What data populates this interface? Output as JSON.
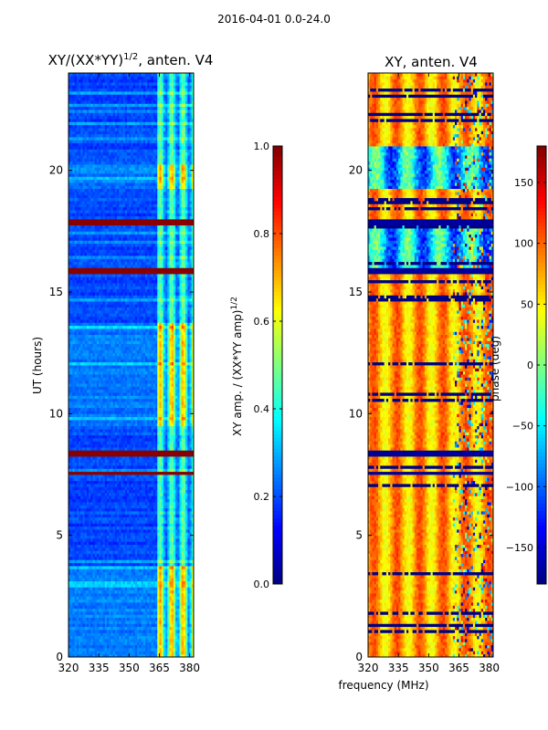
{
  "figure": {
    "suptitle": "2016-04-01 0.0-24.0",
    "xlabel": "frequency (MHz)",
    "ylabel": "UT (hours)"
  },
  "chart_data": [
    {
      "type": "heatmap",
      "title": "XY/(XX*YY)^1/2, anten. V4",
      "title_main": "XY/(XX*YY)",
      "title_exp": "1/2",
      "title_suffix": ", anten. V4",
      "xlabel": "frequency (MHz)",
      "ylabel": "UT (hours)",
      "xlim": [
        320,
        382
      ],
      "ylim": [
        0,
        24
      ],
      "xticks": [
        320,
        335,
        350,
        365,
        380
      ],
      "yticks": [
        0,
        5,
        10,
        15,
        20
      ],
      "colormap": "jet",
      "colorbar": {
        "label": "XY amp. / (XX*YY amp)^1/2",
        "label_main": "XY amp. / (XX*YY amp)",
        "label_exp": "1/2",
        "range": [
          0.0,
          1.0
        ],
        "ticks": [
          "0.0",
          "0.2",
          "0.4",
          "0.6",
          "0.8",
          "1.0"
        ]
      },
      "bright_band_start_mhz": 364,
      "high_value_bands_ut": [
        [
          7.45,
          7.65
        ],
        [
          8.3,
          8.5
        ],
        [
          15.7,
          16.0
        ],
        [
          17.7,
          17.95
        ]
      ],
      "elevated_ut_ranges": [
        [
          19.2,
          20.3
        ],
        [
          0.0,
          3.7
        ],
        [
          9.5,
          13.8
        ]
      ]
    },
    {
      "type": "heatmap",
      "title": "XY, anten. V4",
      "xlabel": "frequency (MHz)",
      "xlim": [
        320,
        382
      ],
      "ylim": [
        0,
        24
      ],
      "xticks": [
        320,
        335,
        350,
        365,
        380
      ],
      "yticks": [
        0,
        5,
        10,
        15,
        20
      ],
      "colormap": "jet",
      "colorbar": {
        "label": "phase (deg)",
        "range": [
          -180,
          180
        ],
        "ticks": [
          "150",
          "100",
          "50",
          "0",
          "−50",
          "−100",
          "−150"
        ]
      },
      "low_value_bands_ut": [
        [
          7.45,
          7.65
        ],
        [
          8.3,
          8.5
        ],
        [
          15.7,
          16.0
        ],
        [
          17.7,
          17.95
        ]
      ],
      "bluish_ut_ranges": [
        [
          19.2,
          21.0
        ],
        [
          16.0,
          17.7
        ]
      ]
    }
  ]
}
